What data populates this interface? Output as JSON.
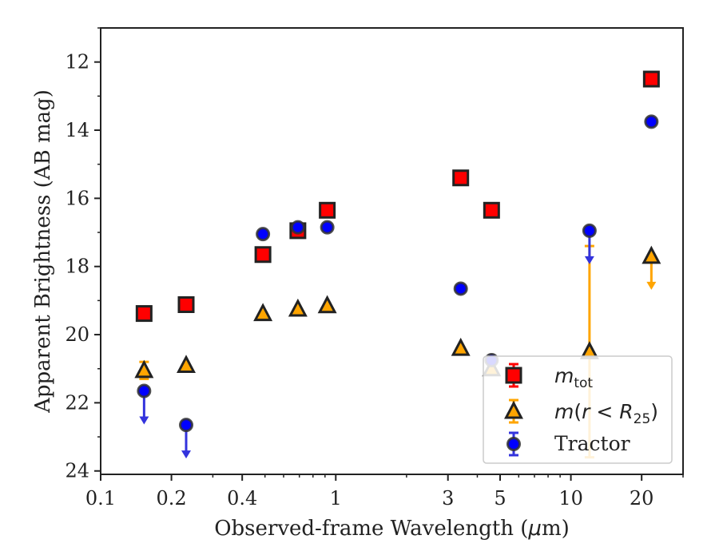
{
  "chart_data": {
    "type": "scatter",
    "xscale": "log",
    "xlabel_prefix": "Observed-frame Wavelength (",
    "xlabel_unit_greek": "μ",
    "xlabel_suffix": "m)",
    "ylabel": "Apparent Brightness (AB mag)",
    "xlim": [
      0.1,
      30
    ],
    "ylim": [
      24.1,
      11
    ],
    "y_inverted": true,
    "xticks": [
      0.1,
      0.2,
      0.4,
      1,
      3,
      5,
      10,
      20
    ],
    "xtick_labels": [
      "0.1",
      "0.2",
      "0.4",
      "1",
      "3",
      "5",
      "10",
      "20"
    ],
    "yticks": [
      12,
      14,
      16,
      18,
      20,
      22,
      24
    ],
    "ytick_labels": [
      "12",
      "14",
      "16",
      "18",
      "20",
      "22",
      "24"
    ],
    "legend_position": "lower right",
    "colors": {
      "m_tot": "#ff0000",
      "m_r25": "#ffa500",
      "tractor": "#0000ff",
      "tractor_err": "#3333dd",
      "m_r25_err": "#ffa500",
      "axis": "#222222"
    },
    "series": [
      {
        "key": "m_tot",
        "marker": "square",
        "legend": {
          "base": "m",
          "sub": "tot"
        },
        "points": [
          {
            "x": 0.153,
            "y": 19.38
          },
          {
            "x": 0.231,
            "y": 19.12
          },
          {
            "x": 0.49,
            "y": 17.65
          },
          {
            "x": 0.69,
            "y": 16.95
          },
          {
            "x": 0.92,
            "y": 16.35
          },
          {
            "x": 3.4,
            "y": 15.4
          },
          {
            "x": 4.6,
            "y": 16.35
          },
          {
            "x": 22.0,
            "y": 12.5
          }
        ]
      },
      {
        "key": "m_r25",
        "marker": "triangle",
        "legend": {
          "base": "m",
          "open": "(",
          "var": "r",
          "op": " < ",
          "rbase": "R",
          "sub": "25",
          "close": ")"
        },
        "points": [
          {
            "x": 0.153,
            "y": 21.05,
            "err": 0.25
          },
          {
            "x": 0.231,
            "y": 20.9
          },
          {
            "x": 0.49,
            "y": 19.38
          },
          {
            "x": 0.69,
            "y": 19.25
          },
          {
            "x": 0.92,
            "y": 19.15
          },
          {
            "x": 3.4,
            "y": 20.4
          },
          {
            "x": 4.6,
            "y": 21.0
          },
          {
            "x": 12.0,
            "y": 20.5,
            "err": 3.1
          },
          {
            "x": 22.0,
            "y": 17.7,
            "upper_limit": true
          }
        ]
      },
      {
        "key": "tractor",
        "marker": "circle",
        "legend": {
          "label": "Tractor"
        },
        "points": [
          {
            "x": 0.153,
            "y": 21.65,
            "upper_limit": true
          },
          {
            "x": 0.231,
            "y": 22.65,
            "upper_limit": true
          },
          {
            "x": 0.49,
            "y": 17.05
          },
          {
            "x": 0.69,
            "y": 16.85
          },
          {
            "x": 0.92,
            "y": 16.85
          },
          {
            "x": 3.4,
            "y": 18.65
          },
          {
            "x": 4.6,
            "y": 20.75
          },
          {
            "x": 12.0,
            "y": 16.95,
            "upper_limit": true
          },
          {
            "x": 22.0,
            "y": 13.75
          }
        ]
      }
    ]
  }
}
